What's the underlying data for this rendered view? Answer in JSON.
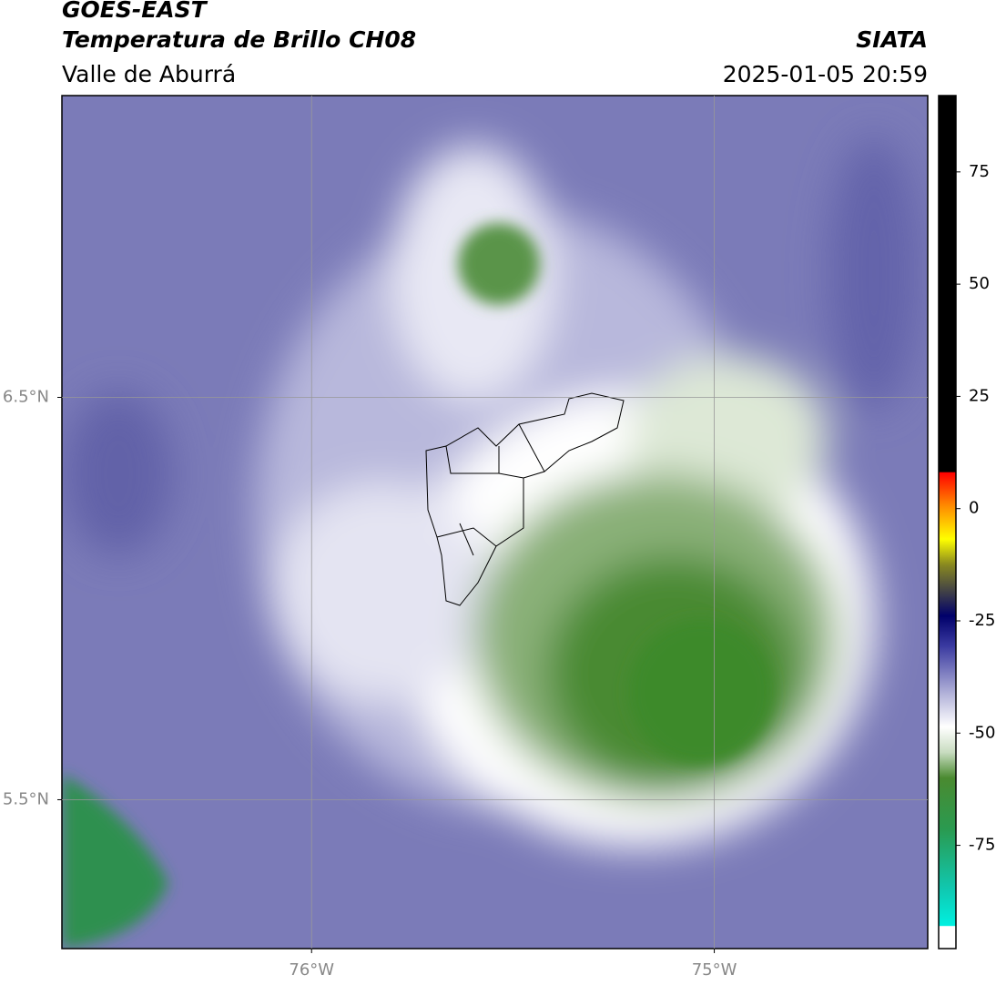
{
  "header": {
    "title": "GOES-EAST",
    "subtitle": "Temperatura de Brillo CH08",
    "region": "Valle de Aburrá",
    "source": "SIATA",
    "datetime": "2025-01-05 20:59"
  },
  "map": {
    "xlim": [
      -76.62,
      -74.47
    ],
    "ylim": [
      5.13,
      7.25
    ],
    "xticks": [
      {
        "value": -76,
        "label": "76°W"
      },
      {
        "value": -75,
        "label": "75°W"
      }
    ],
    "yticks": [
      {
        "value": 6.5,
        "label": "6.5°N"
      },
      {
        "value": 5.5,
        "label": "5.5°N"
      }
    ],
    "grid": true
  },
  "colorbar": {
    "clim": [
      -98,
      92
    ],
    "ticks": [
      75,
      50,
      25,
      0,
      -25,
      -50,
      -75
    ]
  }
}
